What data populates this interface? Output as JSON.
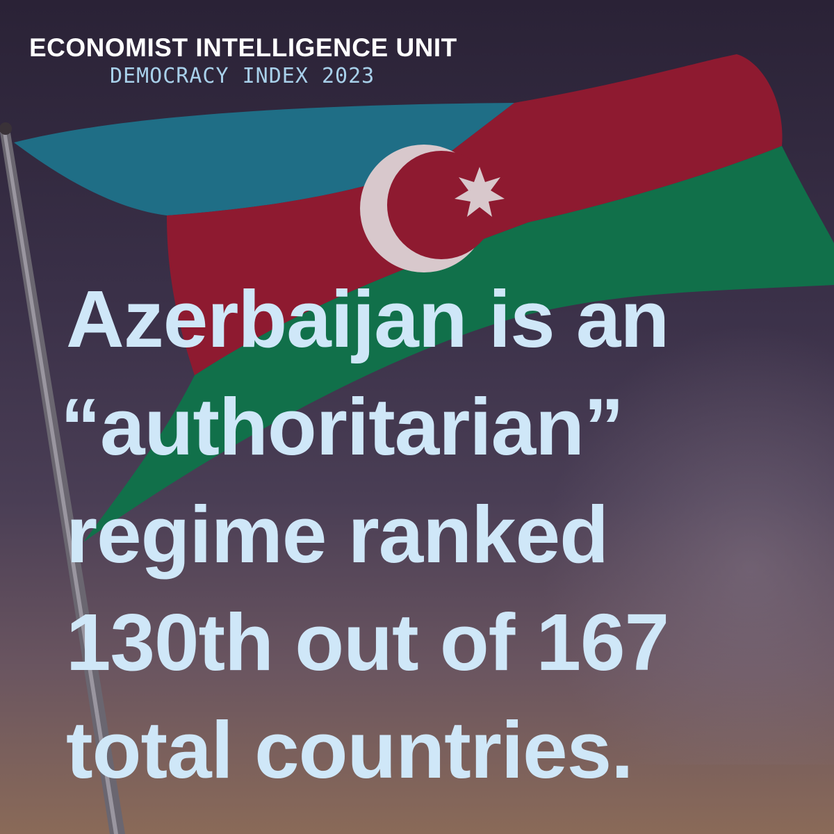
{
  "header": {
    "organization": "ECONOMIST INTELLIGENCE UNIT",
    "subtitle": "DEMOCRACY INDEX 2023"
  },
  "headline": {
    "lines": [
      "Azerbaijan is an",
      "“authoritarian”",
      "regime ranked",
      "130th out of 167",
      "total countries."
    ]
  },
  "colors": {
    "flag_blue": "#1f6e86",
    "flag_red": "#8e1a30",
    "flag_green": "#11704a",
    "text": "#cfe7f8",
    "subtitle": "#a8d0ea"
  },
  "image": {
    "subject": "flag-of-azerbaijan"
  }
}
